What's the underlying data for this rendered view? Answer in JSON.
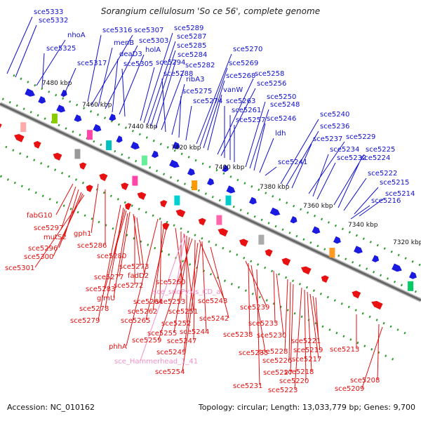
{
  "title": "Sorangium cellulosum 'So ce 56', complete genome",
  "footer": {
    "accession": "Accession: NC_010162",
    "summary": "Topology: circular; Length: 13,033,779 bp; Genes: 9,700"
  },
  "colors": {
    "forward_label": "#1010cc",
    "reverse_label": "#e01010",
    "rna_label": "#f090c8",
    "backbone": "#808080",
    "dot_track": "#2a9a2a",
    "forward_gene": "#1a1ae0",
    "reverse_gene": "#e81010"
  },
  "ticks": [
    "7480 kbp",
    "7460 kbp",
    "7440 kbp",
    "7420 kbp",
    "7400 kbp",
    "7380 kbp",
    "7360 kbp",
    "7340 kbp",
    "7320 kbp"
  ],
  "forward_labels": [
    "sce5333",
    "sce5332",
    "nhoA",
    "sce5325",
    "sce5317",
    "sce5316",
    "sce5307",
    "menB",
    "sce5303",
    "deaD3",
    "holA",
    "sce5305",
    "sce5294",
    "sce5289",
    "sce5287",
    "sce5285",
    "sce5284",
    "sce5282",
    "sce5288",
    "ribA3",
    "sce5275",
    "sce5274",
    "sce5270",
    "sce5269",
    "sce5268",
    "vanW",
    "sce5258",
    "sce5256",
    "sce5263",
    "sce5261",
    "sce5257",
    "sce5250",
    "sce5248",
    "sce5246",
    "ldh",
    "sce5241",
    "sce5240",
    "sce5236",
    "sce5237",
    "sce5229",
    "sce5234",
    "sce5232",
    "sce5225",
    "sce5224",
    "sce5222",
    "sce5215",
    "sce5214",
    "sce5216"
  ],
  "reverse_labels": [
    "fabG10",
    "sce5297",
    "mutS2",
    "sce5296",
    "sce5300",
    "sce5301",
    "gph1",
    "sce5286",
    "sce5280",
    "sce5273",
    "fadD2",
    "sce5277",
    "sce5272",
    "sce5283",
    "glmU",
    "sce5278",
    "sce5279",
    "sce5260",
    "sce5264",
    "sce5262",
    "sce5265",
    "sce5253",
    "sce5251",
    "sce5243",
    "sce5252",
    "sce5255",
    "sce5244",
    "sce5259",
    "sce5247",
    "phhA",
    "sce5249",
    "sce5254",
    "sce5242",
    "sce5239",
    "sce5238",
    "sce5235",
    "sce5233",
    "sce5230",
    "sce5228",
    "sce5226",
    "sce5227",
    "sce5231",
    "sce5223",
    "sce5220",
    "sce5218",
    "sce5217",
    "sce5219",
    "sce5221",
    "sce5213",
    "sce5208",
    "sce5209"
  ],
  "rna_labels": [
    "sce_snoPyxis_CD_a",
    "sce_Hammerhead_1_41"
  ]
}
